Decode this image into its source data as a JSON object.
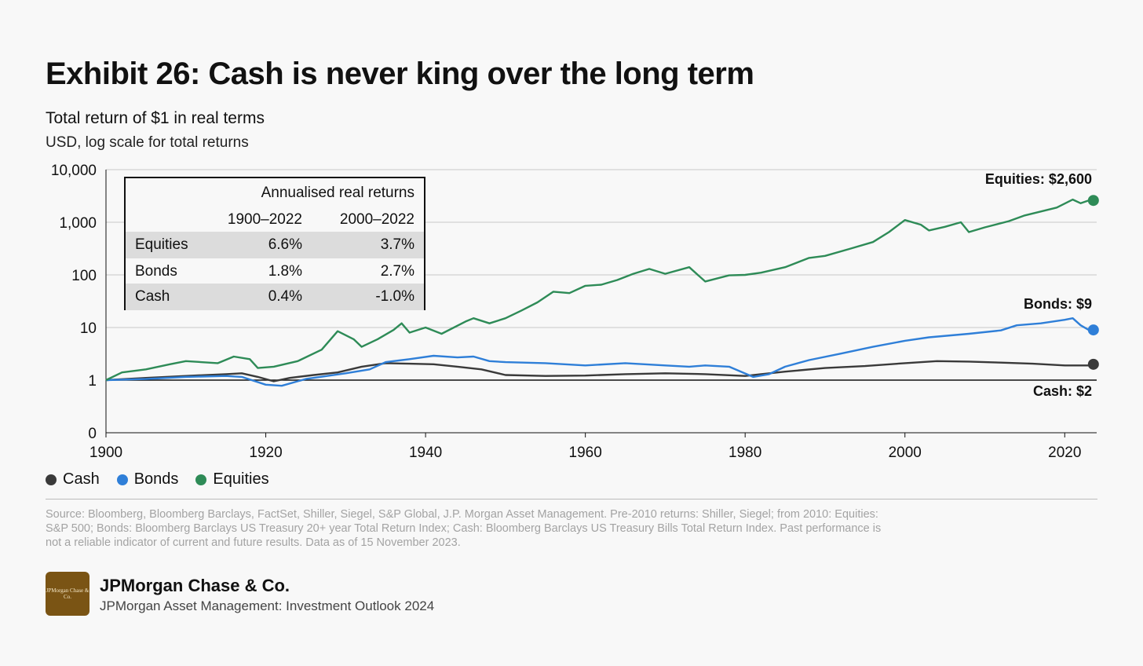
{
  "header": {
    "title": "Exhibit 26: Cash is never king over the long term",
    "subtitle": "Total return of $1 in real terms",
    "unit_note": "USD, log scale for total returns"
  },
  "returns_table": {
    "title": "Annualised real returns",
    "columns": [
      "1900–2022",
      "2000–2022"
    ],
    "rows": [
      {
        "name": "Equities",
        "v1": "6.6%",
        "v2": "3.7%"
      },
      {
        "name": "Bonds",
        "v1": "1.8%",
        "v2": "2.7%"
      },
      {
        "name": "Cash",
        "v1": "0.4%",
        "v2": "-1.0%"
      }
    ]
  },
  "legend": [
    "Cash",
    "Bonds",
    "Equities"
  ],
  "source_note": "Source: Bloomberg, Bloomberg Barclays, FactSet, Shiller, Siegel, S&P Global, J.P. Morgan Asset Management. Pre-2010 returns: Shiller, Siegel; from 2010: Equities: S&P 500; Bonds: Bloomberg Barclays US Treasury 20+ year Total Return Index; Cash: Bloomberg Barclays US Treasury Bills Total Return Index. Past performance is not a reliable indicator of current and future results. Data as of 15 November 2023.",
  "footer": {
    "logo_text": "JPMorgan Chase & Co.",
    "brand": "JPMorgan Chase & Co.",
    "publication": "JPMorgan Asset Management: Investment Outlook 2024"
  },
  "chart_data": {
    "type": "line",
    "title": "Total return of $1 in real terms",
    "ylabel": "USD, log scale for total returns",
    "yscale": "log",
    "yticks": [
      0.1,
      1,
      10,
      100,
      1000,
      10000
    ],
    "ytick_labels": [
      "0",
      "1",
      "10",
      "100",
      "1,000",
      "10,000"
    ],
    "xticks": [
      1900,
      1920,
      1940,
      1960,
      1980,
      2000,
      2020
    ],
    "xlim": [
      1900,
      2024
    ],
    "ylim": [
      0.1,
      10000
    ],
    "colors": {
      "Cash": "#3a3a3a",
      "Bonds": "#2f7fd8",
      "Equities": "#2e8b57"
    },
    "series": [
      {
        "name": "Equities",
        "end_label": "Equities: $2,600",
        "end_value": 2600,
        "points": [
          [
            1900,
            1
          ],
          [
            1902,
            1.4
          ],
          [
            1905,
            1.6
          ],
          [
            1908,
            2
          ],
          [
            1910,
            2.3
          ],
          [
            1914,
            2.1
          ],
          [
            1916,
            2.8
          ],
          [
            1918,
            2.5
          ],
          [
            1919,
            1.7
          ],
          [
            1921,
            1.8
          ],
          [
            1924,
            2.3
          ],
          [
            1927,
            3.8
          ],
          [
            1929,
            8.5
          ],
          [
            1931,
            6
          ],
          [
            1932,
            4.3
          ],
          [
            1934,
            6
          ],
          [
            1936,
            9
          ],
          [
            1937,
            12
          ],
          [
            1938,
            8
          ],
          [
            1940,
            10
          ],
          [
            1942,
            7.6
          ],
          [
            1945,
            13
          ],
          [
            1946,
            15
          ],
          [
            1948,
            12
          ],
          [
            1950,
            15
          ],
          [
            1952,
            21
          ],
          [
            1954,
            30
          ],
          [
            1956,
            48
          ],
          [
            1958,
            45
          ],
          [
            1960,
            62
          ],
          [
            1962,
            65
          ],
          [
            1964,
            80
          ],
          [
            1966,
            105
          ],
          [
            1968,
            130
          ],
          [
            1970,
            105
          ],
          [
            1973,
            140
          ],
          [
            1975,
            75
          ],
          [
            1978,
            98
          ],
          [
            1980,
            100
          ],
          [
            1982,
            110
          ],
          [
            1985,
            140
          ],
          [
            1988,
            210
          ],
          [
            1990,
            230
          ],
          [
            1993,
            310
          ],
          [
            1996,
            420
          ],
          [
            1998,
            650
          ],
          [
            2000,
            1100
          ],
          [
            2002,
            900
          ],
          [
            2003,
            700
          ],
          [
            2005,
            820
          ],
          [
            2007,
            1000
          ],
          [
            2008,
            650
          ],
          [
            2010,
            800
          ],
          [
            2013,
            1050
          ],
          [
            2015,
            1350
          ],
          [
            2017,
            1600
          ],
          [
            2019,
            1900
          ],
          [
            2021,
            2700
          ],
          [
            2022,
            2300
          ],
          [
            2023,
            2600
          ]
        ]
      },
      {
        "name": "Bonds",
        "end_label": "Bonds: $9",
        "end_value": 9,
        "points": [
          [
            1900,
            1
          ],
          [
            1905,
            1.05
          ],
          [
            1910,
            1.15
          ],
          [
            1915,
            1.2
          ],
          [
            1917,
            1.15
          ],
          [
            1920,
            0.82
          ],
          [
            1922,
            0.78
          ],
          [
            1925,
            1.05
          ],
          [
            1930,
            1.35
          ],
          [
            1933,
            1.6
          ],
          [
            1935,
            2.2
          ],
          [
            1938,
            2.5
          ],
          [
            1941,
            2.9
          ],
          [
            1944,
            2.7
          ],
          [
            1946,
            2.8
          ],
          [
            1948,
            2.3
          ],
          [
            1950,
            2.2
          ],
          [
            1955,
            2.1
          ],
          [
            1960,
            1.9
          ],
          [
            1965,
            2.1
          ],
          [
            1970,
            1.9
          ],
          [
            1973,
            1.8
          ],
          [
            1975,
            1.9
          ],
          [
            1978,
            1.8
          ],
          [
            1981,
            1.15
          ],
          [
            1983,
            1.3
          ],
          [
            1985,
            1.8
          ],
          [
            1988,
            2.4
          ],
          [
            1992,
            3.2
          ],
          [
            1996,
            4.3
          ],
          [
            2000,
            5.6
          ],
          [
            2003,
            6.5
          ],
          [
            2008,
            7.6
          ],
          [
            2012,
            8.8
          ],
          [
            2014,
            11
          ],
          [
            2017,
            12
          ],
          [
            2020,
            14
          ],
          [
            2021,
            15
          ],
          [
            2022,
            11
          ],
          [
            2023,
            9
          ]
        ]
      },
      {
        "name": "Cash",
        "end_label": "Cash: $2",
        "end_value": 2,
        "points": [
          [
            1900,
            1
          ],
          [
            1905,
            1.1
          ],
          [
            1910,
            1.2
          ],
          [
            1915,
            1.3
          ],
          [
            1917,
            1.35
          ],
          [
            1919,
            1.15
          ],
          [
            1921,
            0.95
          ],
          [
            1923,
            1.1
          ],
          [
            1926,
            1.25
          ],
          [
            1929,
            1.4
          ],
          [
            1932,
            1.8
          ],
          [
            1935,
            2.1
          ],
          [
            1938,
            2.05
          ],
          [
            1941,
            2.0
          ],
          [
            1944,
            1.8
          ],
          [
            1947,
            1.6
          ],
          [
            1950,
            1.25
          ],
          [
            1955,
            1.2
          ],
          [
            1960,
            1.22
          ],
          [
            1965,
            1.3
          ],
          [
            1970,
            1.35
          ],
          [
            1975,
            1.3
          ],
          [
            1980,
            1.2
          ],
          [
            1982,
            1.3
          ],
          [
            1985,
            1.45
          ],
          [
            1990,
            1.7
          ],
          [
            1995,
            1.85
          ],
          [
            2000,
            2.1
          ],
          [
            2004,
            2.3
          ],
          [
            2008,
            2.25
          ],
          [
            2012,
            2.15
          ],
          [
            2016,
            2.05
          ],
          [
            2020,
            1.9
          ],
          [
            2023,
            1.9
          ]
        ]
      }
    ]
  }
}
